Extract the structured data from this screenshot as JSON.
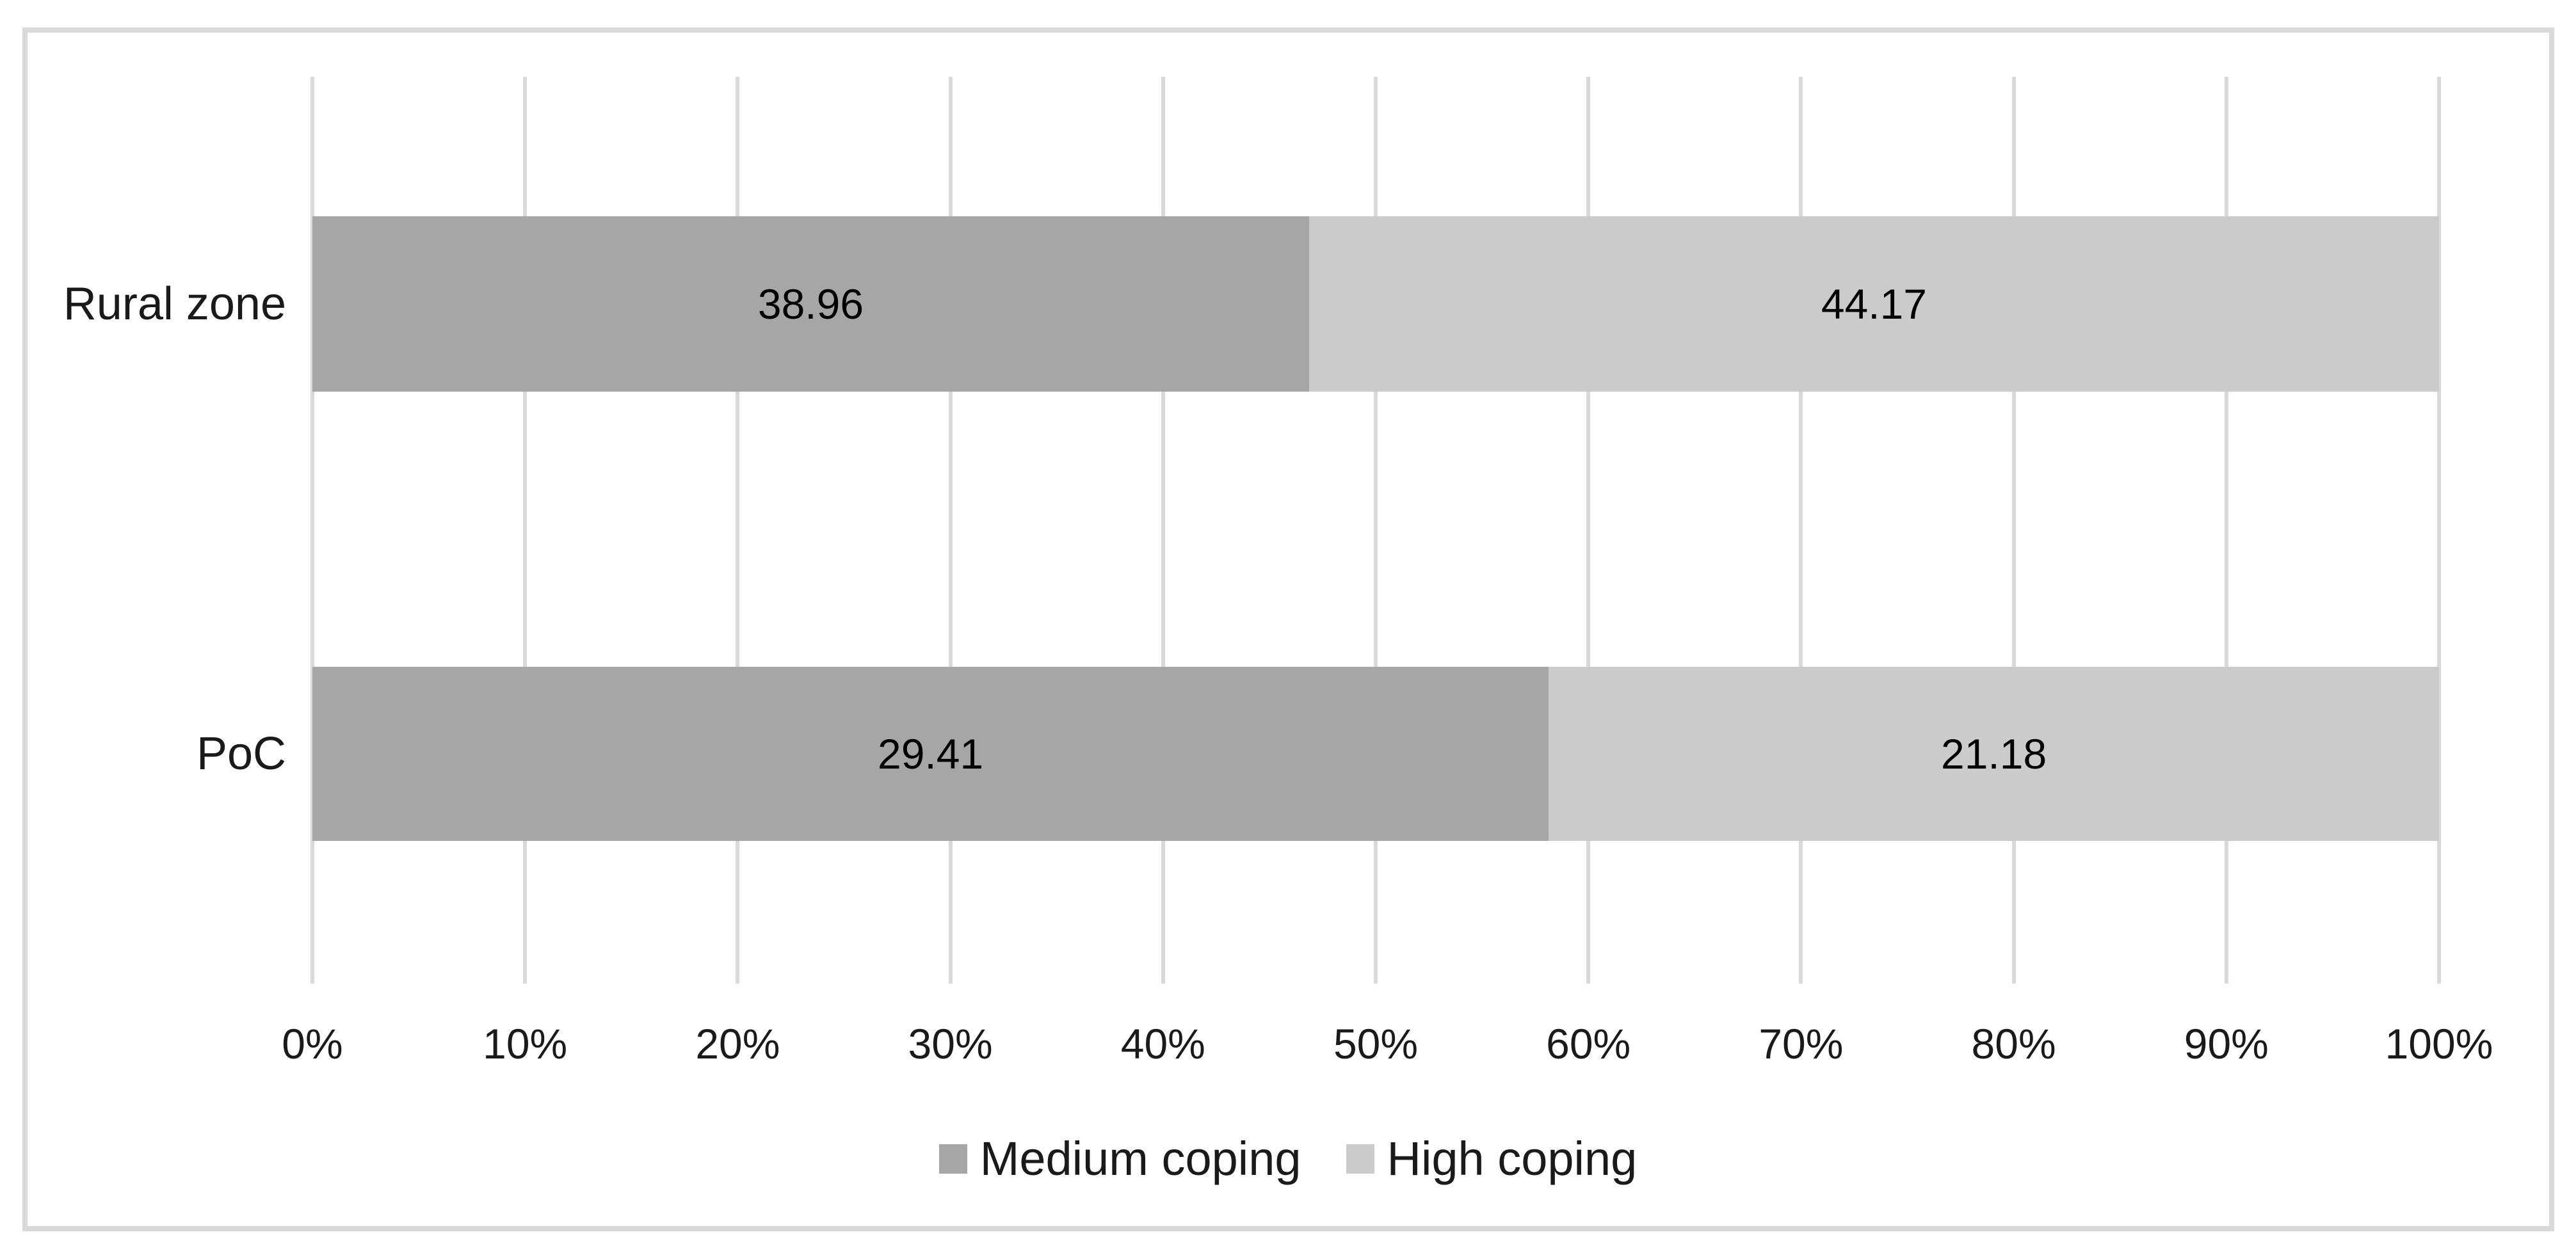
{
  "chart_data": {
    "type": "bar",
    "subtype": "100%-stacked-horizontal",
    "title": "",
    "xlabel": "",
    "ylabel": "",
    "categories": [
      "Rural zone",
      "PoC"
    ],
    "series": [
      {
        "name": "Medium coping",
        "color": "#a6a6a6",
        "values": [
          38.96,
          29.41
        ]
      },
      {
        "name": "High coping",
        "color": "#cbcbcb",
        "values": [
          44.17,
          21.18
        ]
      }
    ],
    "data_labels": [
      [
        "38.96",
        "44.17"
      ],
      [
        "29.41",
        "21.18"
      ]
    ],
    "x_axis": {
      "tick_labels": [
        "0%",
        "10%",
        "20%",
        "30%",
        "40%",
        "50%",
        "60%",
        "70%",
        "80%",
        "90%",
        "100%"
      ],
      "min": 0,
      "max": 100
    },
    "grid": "vertical",
    "gridline_color": "#d9d9d9",
    "legend_position": "bottom",
    "legend_entries": [
      "Medium coping",
      "High coping"
    ],
    "frame_border_color": "#d9d9d9",
    "background_color": "#ffffff"
  }
}
